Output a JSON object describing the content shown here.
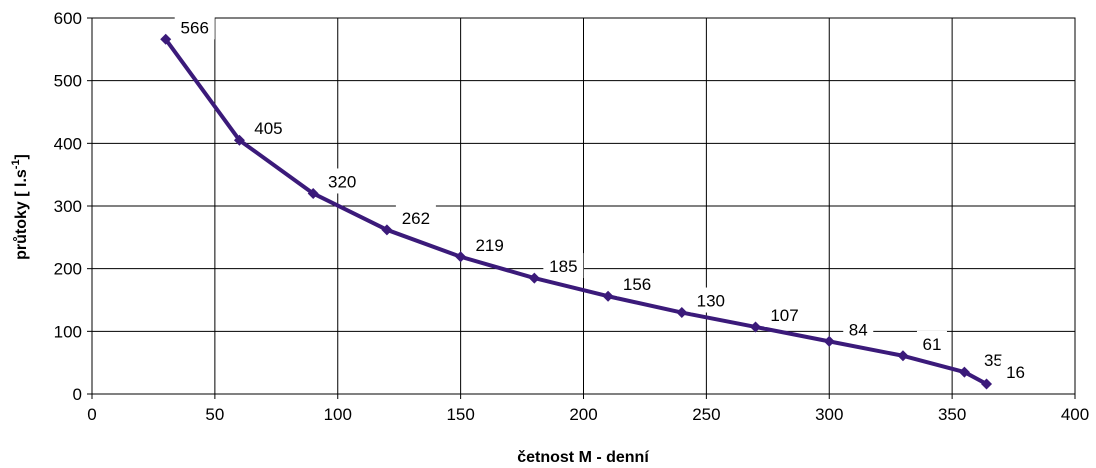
{
  "chart_data": {
    "type": "line",
    "title": "",
    "xlabel": "četnost  M - denní",
    "ylabel_main": "průtoky  [ l.s",
    "ylabel_sup": "-1",
    "ylabel_end": "]",
    "xlim": [
      0,
      400
    ],
    "ylim": [
      0,
      600
    ],
    "xticks": [
      0,
      50,
      100,
      150,
      200,
      250,
      300,
      350,
      400
    ],
    "yticks": [
      0,
      100,
      200,
      300,
      400,
      500,
      600
    ],
    "grid": true,
    "legend": "none",
    "line_color": "#3b1a7a",
    "series": [
      {
        "x": [
          30,
          60,
          90,
          120,
          150,
          180,
          210,
          240,
          270,
          300,
          330,
          355,
          364
        ],
        "values": [
          566,
          405,
          320,
          262,
          219,
          185,
          156,
          130,
          107,
          84,
          61,
          35,
          16
        ],
        "labels": [
          "566",
          "405",
          "320",
          "262",
          "219",
          "185",
          "156",
          "130",
          "107",
          "84",
          "61",
          "35",
          "16"
        ]
      }
    ]
  }
}
